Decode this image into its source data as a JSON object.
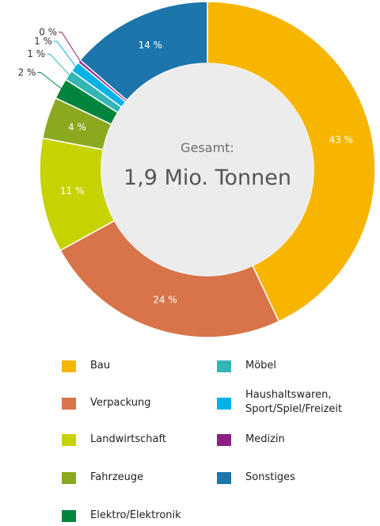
{
  "chart_data": {
    "type": "pie",
    "donut": true,
    "center_title": "Gesamt:",
    "center_value": "1,9 Mio. Tonnen",
    "slices": [
      {
        "name": "Bau",
        "value": 43,
        "label": "43 %",
        "color": "#F7B500"
      },
      {
        "name": "Verpackung",
        "value": 24,
        "label": "24 %",
        "color": "#D9734A"
      },
      {
        "name": "Landwirtschaft",
        "value": 11,
        "label": "11 %",
        "color": "#C6D300"
      },
      {
        "name": "Fahrzeuge",
        "value": 4,
        "label": "4 %",
        "color": "#8BA91F"
      },
      {
        "name": "Elektro/Elektronik",
        "value": 2,
        "label": "2 %",
        "color": "#00843D"
      },
      {
        "name": "Möbel",
        "value": 1,
        "label": "1 %",
        "color": "#34B5B5"
      },
      {
        "name": "Haushaltswaren,\nSport/Spiel/Freizeit",
        "value": 1,
        "label": "1 %",
        "color": "#00B2E6"
      },
      {
        "name": "Medizin",
        "value": 0.3,
        "label": "0 %",
        "color": "#8E1F86"
      },
      {
        "name": "Sonstiges",
        "value": 13.7,
        "label": "14 %",
        "color": "#1C75AB"
      }
    ]
  }
}
